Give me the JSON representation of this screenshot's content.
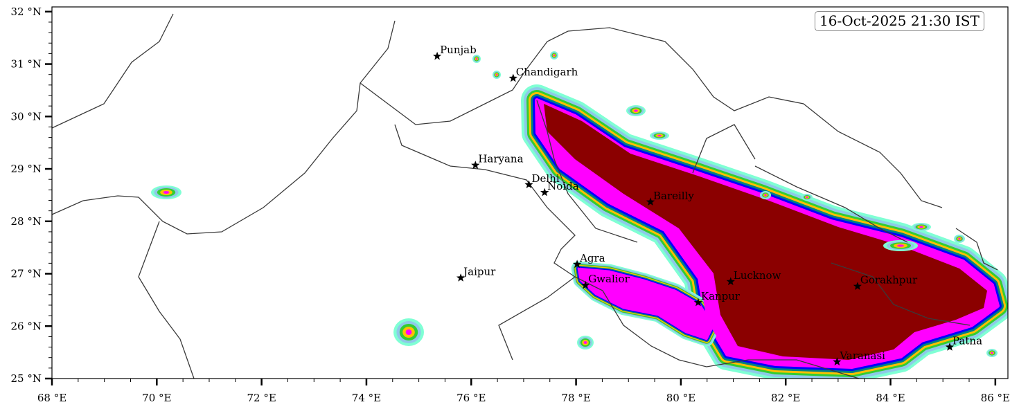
{
  "timestamp": "16-Oct-2025 21:30 IST",
  "map": {
    "lon_range": [
      68,
      86.24
    ],
    "lat_range": [
      25,
      32.09
    ],
    "x_ticks": [
      {
        "value": 68,
        "label": "68 °E"
      },
      {
        "value": 70,
        "label": "70 °E"
      },
      {
        "value": 72,
        "label": "72 °E"
      },
      {
        "value": 74,
        "label": "74 °E"
      },
      {
        "value": 76,
        "label": "76 °E"
      },
      {
        "value": 78,
        "label": "78 °E"
      },
      {
        "value": 80,
        "label": "80 °E"
      },
      {
        "value": 82,
        "label": "82 °E"
      },
      {
        "value": 84,
        "label": "84 °E"
      },
      {
        "value": 86,
        "label": "86 °E"
      }
    ],
    "y_ticks": [
      {
        "value": 25,
        "label": "25 °N"
      },
      {
        "value": 26,
        "label": "26 °N"
      },
      {
        "value": 27,
        "label": "27 °N"
      },
      {
        "value": 28,
        "label": "28 °N"
      },
      {
        "value": 29,
        "label": "29 °N"
      },
      {
        "value": 30,
        "label": "30 °N"
      },
      {
        "value": 31,
        "label": "31 °N"
      },
      {
        "value": 32,
        "label": "32 °N"
      }
    ],
    "shading_colors": [
      "#7fffd4",
      "#8ec9e8",
      "#32cd32",
      "#ffc000",
      "#008080",
      "#0000ff",
      "#ff00ff",
      "#8b0000"
    ],
    "border_color": "#3a3a3a",
    "cities": [
      {
        "name": "Punjab",
        "lon": 75.35,
        "lat": 31.15
      },
      {
        "name": "Chandigarh",
        "lon": 76.8,
        "lat": 30.73
      },
      {
        "name": "Haryana",
        "lon": 76.08,
        "lat": 29.07
      },
      {
        "name": "Delhi",
        "lon": 77.1,
        "lat": 28.7
      },
      {
        "name": "Noida",
        "lon": 77.4,
        "lat": 28.55
      },
      {
        "name": "Bareilly",
        "lon": 79.42,
        "lat": 28.37
      },
      {
        "name": "Agra",
        "lon": 78.02,
        "lat": 27.18
      },
      {
        "name": "Jaipur",
        "lon": 75.8,
        "lat": 26.92
      },
      {
        "name": "Gwalior",
        "lon": 78.18,
        "lat": 26.78
      },
      {
        "name": "Lucknow",
        "lon": 80.95,
        "lat": 26.85
      },
      {
        "name": "Kanpur",
        "lon": 80.33,
        "lat": 26.45
      },
      {
        "name": "Gorakhpur",
        "lon": 83.37,
        "lat": 26.76
      },
      {
        "name": "Varanasi",
        "lon": 82.98,
        "lat": 25.32
      },
      {
        "name": "Patna",
        "lon": 85.13,
        "lat": 25.6
      }
    ]
  }
}
